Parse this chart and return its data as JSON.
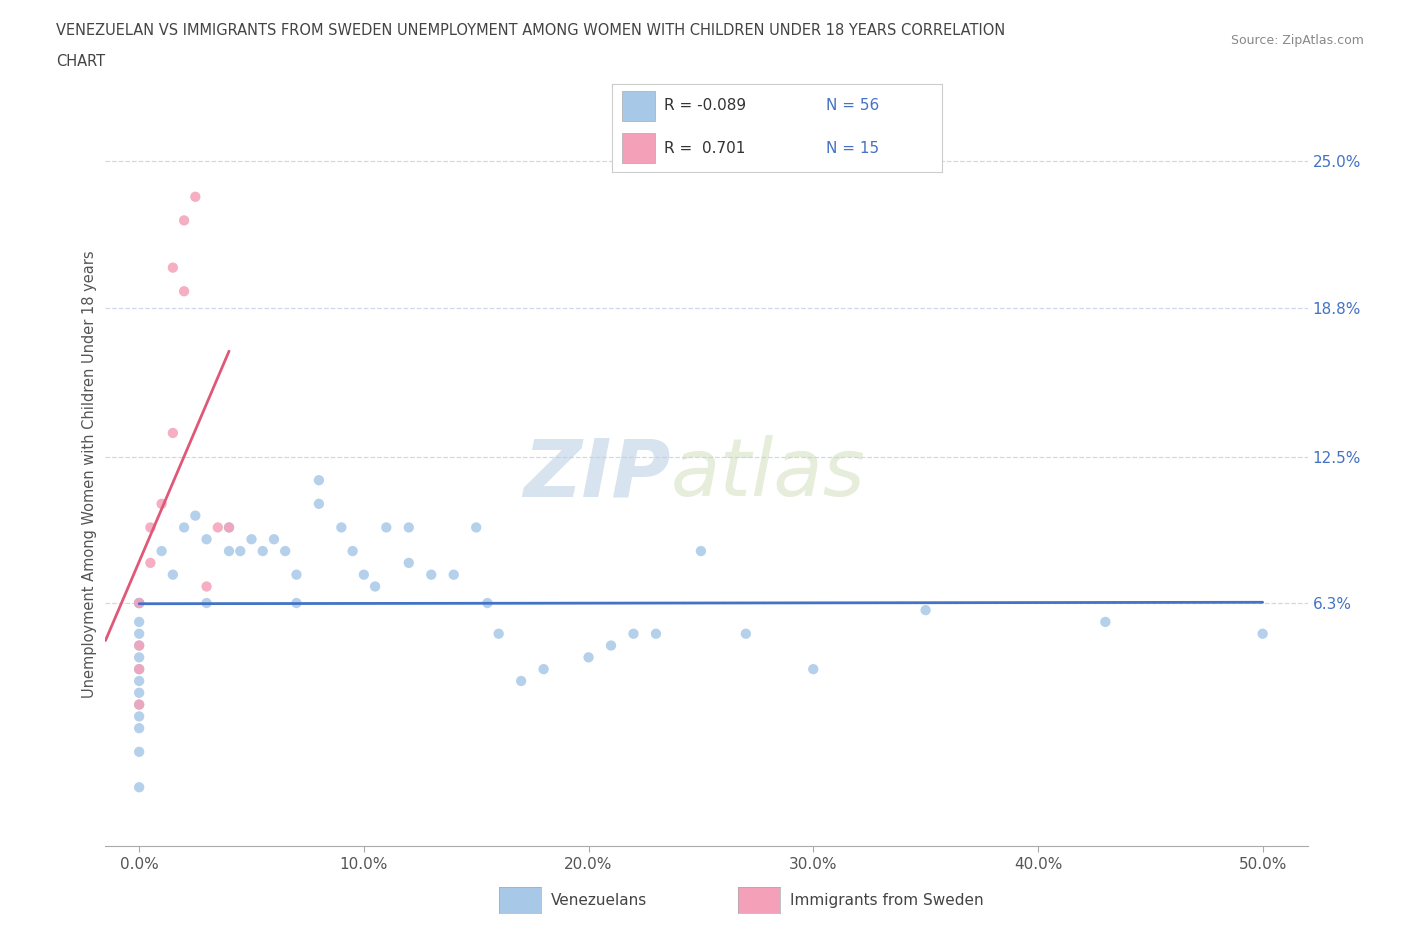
{
  "title_line1": "VENEZUELAN VS IMMIGRANTS FROM SWEDEN UNEMPLOYMENT AMONG WOMEN WITH CHILDREN UNDER 18 YEARS CORRELATION",
  "title_line2": "CHART",
  "source": "Source: ZipAtlas.com",
  "ylabel": "Unemployment Among Women with Children Under 18 years",
  "xlabel_ticks": [
    "0.0%",
    "10.0%",
    "20.0%",
    "30.0%",
    "40.0%",
    "50.0%"
  ],
  "xlabel_vals": [
    0.0,
    10.0,
    20.0,
    30.0,
    40.0,
    50.0
  ],
  "right_yticks": [
    6.3,
    12.5,
    18.8,
    25.0
  ],
  "right_ytick_labels": [
    "6.3%",
    "12.5%",
    "18.8%",
    "25.0%"
  ],
  "xlim": [
    -1.5,
    52.0
  ],
  "ylim": [
    -4.0,
    27.5
  ],
  "venezuelan_color": "#a8c8e8",
  "sweden_color": "#f4a0b8",
  "trendline_venezuelan_color": "#4472c4",
  "trendline_sweden_color": "#e05878",
  "background_color": "#ffffff",
  "grid_color": "#c8d4e8",
  "watermark_zip": "ZIP",
  "watermark_atlas": "atlas",
  "venezuelan_x": [
    0.0,
    0.0,
    0.0,
    0.0,
    0.0,
    0.0,
    0.0,
    0.0,
    0.0,
    0.0,
    0.0,
    0.0,
    0.0,
    0.0,
    0.0,
    1.0,
    1.5,
    2.0,
    2.5,
    3.0,
    3.0,
    4.0,
    4.0,
    4.5,
    5.0,
    5.5,
    6.0,
    6.5,
    7.0,
    7.0,
    8.0,
    8.0,
    9.0,
    9.5,
    10.0,
    10.5,
    11.0,
    12.0,
    12.0,
    13.0,
    14.0,
    15.0,
    15.5,
    16.0,
    17.0,
    18.0,
    20.0,
    21.0,
    22.0,
    23.0,
    25.0,
    27.0,
    30.0,
    35.0,
    43.0,
    50.0
  ],
  "venezuelan_y": [
    6.3,
    6.3,
    6.3,
    5.5,
    5.0,
    4.5,
    4.0,
    3.5,
    3.0,
    2.5,
    2.0,
    1.5,
    1.0,
    0.0,
    -1.5,
    8.5,
    7.5,
    9.5,
    10.0,
    9.0,
    6.3,
    9.5,
    8.5,
    8.5,
    9.0,
    8.5,
    9.0,
    8.5,
    7.5,
    6.3,
    11.5,
    10.5,
    9.5,
    8.5,
    7.5,
    7.0,
    9.5,
    8.0,
    9.5,
    7.5,
    7.5,
    9.5,
    6.3,
    5.0,
    3.0,
    3.5,
    4.0,
    4.5,
    5.0,
    5.0,
    8.5,
    5.0,
    3.5,
    6.0,
    5.5,
    5.0
  ],
  "sweden_x": [
    0.0,
    0.0,
    0.0,
    0.0,
    0.5,
    0.5,
    1.0,
    1.5,
    1.5,
    2.0,
    2.0,
    2.5,
    3.0,
    3.5,
    4.0
  ],
  "sweden_y": [
    6.3,
    4.5,
    3.5,
    2.0,
    8.0,
    9.5,
    10.5,
    13.5,
    20.5,
    19.5,
    22.5,
    23.5,
    7.0,
    9.5,
    9.5
  ],
  "legend_patch_v": "#a8c8e8",
  "legend_patch_s": "#f4a0b8",
  "legend_text_color": "#333333",
  "legend_val_color": "#4472c4"
}
